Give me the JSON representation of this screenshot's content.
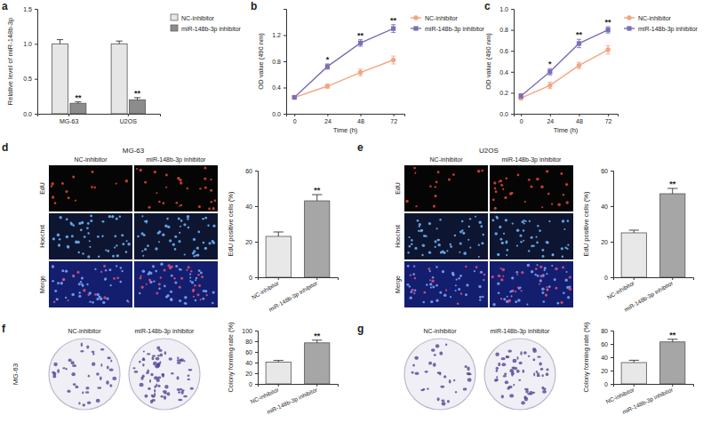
{
  "chart_data": [
    {
      "panel": "a",
      "type": "bar",
      "ylabel": "Relative level of miR-148b-3p",
      "categories": [
        "MG-63",
        "U2OS"
      ],
      "series": [
        {
          "name": "NC-inhibitor",
          "color": "#e6e6e6",
          "values": [
            1.0,
            1.0
          ],
          "errors": [
            0.06,
            0.04
          ]
        },
        {
          "name": "miR-148b-3p inhibitor",
          "color": "#8c8c8c",
          "values": [
            0.15,
            0.2
          ],
          "errors": [
            0.02,
            0.03
          ]
        }
      ],
      "ylim": [
        0,
        1.5
      ],
      "yticks": [
        {
          "value": 0,
          "label": "0.0"
        },
        0.5,
        {
          "value": 1,
          "label": "1.0"
        },
        1.5
      ],
      "legend": "right",
      "annotations": [
        {
          "x": "MG-63",
          "series": "miR-148b-3p inhibitor",
          "text": "**"
        },
        {
          "x": "U2OS",
          "series": "miR-148b-3p inhibitor",
          "text": "**"
        }
      ]
    },
    {
      "panel": "b",
      "type": "line",
      "xlabel": "Time (h)",
      "ylabel": "OD value (490 nm)",
      "x": [
        0,
        24,
        48,
        72
      ],
      "xlim": [
        -6,
        80
      ],
      "xticks": [
        0,
        24,
        48,
        72
      ],
      "ylim": [
        0,
        1.6
      ],
      "yticks": [
        {
          "value": 0,
          "label": "0.0"
        },
        0.4,
        0.8,
        1.2
      ],
      "series": [
        {
          "name": "NC-inhibitor",
          "color": "#f4a582",
          "marker": "circle",
          "values": [
            0.25,
            0.42,
            0.63,
            0.82
          ],
          "errors": [
            0.02,
            0.03,
            0.05,
            0.06
          ]
        },
        {
          "name": "miR-148b-3p inhibitor",
          "color": "#7b6fb5",
          "marker": "square",
          "values": [
            0.25,
            0.72,
            1.08,
            1.3
          ],
          "errors": [
            0.02,
            0.04,
            0.05,
            0.06
          ]
        }
      ],
      "legend": "right",
      "annotations": [
        {
          "x": 24,
          "text": "*"
        },
        {
          "x": 48,
          "text": "**"
        },
        {
          "x": 72,
          "text": "**"
        }
      ]
    },
    {
      "panel": "c",
      "type": "line",
      "xlabel": "Time (h)",
      "ylabel": "OD value (490 nm)",
      "x": [
        0,
        24,
        48,
        72
      ],
      "xlim": [
        -6,
        80
      ],
      "xticks": [
        0,
        24,
        48,
        72
      ],
      "ylim": [
        0,
        1.0
      ],
      "yticks": [
        {
          "value": 0,
          "label": "0.0"
        },
        0.2,
        0.4,
        0.6,
        0.8,
        {
          "value": 1,
          "label": "1.0"
        }
      ],
      "series": [
        {
          "name": "NC-inhibitor",
          "color": "#f4a582",
          "marker": "circle",
          "values": [
            0.15,
            0.27,
            0.46,
            0.61
          ],
          "errors": [
            0.02,
            0.03,
            0.03,
            0.04
          ]
        },
        {
          "name": "miR-148b-3p inhibitor",
          "color": "#7b6fb5",
          "marker": "square",
          "values": [
            0.17,
            0.4,
            0.67,
            0.8
          ],
          "errors": [
            0.02,
            0.03,
            0.04,
            0.03
          ]
        }
      ],
      "legend": "right",
      "annotations": [
        {
          "x": 24,
          "text": "*"
        },
        {
          "x": 48,
          "text": "**"
        },
        {
          "x": 72,
          "text": "**"
        }
      ]
    },
    {
      "type": "bar",
      "ylabel": "EdU positive cells (%)",
      "categories": [
        "NC-inhibitor",
        "miR-148b-3p inhibitor"
      ],
      "values": [
        23,
        43
      ],
      "errors": [
        2.5,
        3.5
      ],
      "colors": [
        "#e8e8e8",
        "#a6a6a6"
      ],
      "ylim": [
        0,
        60
      ],
      "yticks": [
        0,
        20,
        40,
        60
      ],
      "annotations": [
        {
          "x": "miR-148b-3p inhibitor",
          "text": "**"
        }
      ]
    },
    {
      "type": "bar",
      "ylabel": "EdU positive cells (%)",
      "categories": [
        "NC-inhibitor",
        "miR-148b-3p inhibitor"
      ],
      "values": [
        25,
        47
      ],
      "errors": [
        1.5,
        3
      ],
      "colors": [
        "#e8e8e8",
        "#a6a6a6"
      ],
      "ylim": [
        0,
        60
      ],
      "yticks": [
        0,
        20,
        40,
        60
      ],
      "annotations": [
        {
          "x": "miR-148b-3p inhibitor",
          "text": "**"
        }
      ]
    },
    {
      "type": "bar",
      "ylabel": "Colony forming rate (%)",
      "categories": [
        "NC-inhibitor",
        "miR-148b-3p inhibitor"
      ],
      "values": [
        41,
        77
      ],
      "errors": [
        3,
        5
      ],
      "colors": [
        "#e8e8e8",
        "#a6a6a6"
      ],
      "ylim": [
        0,
        100
      ],
      "yticks": [
        0,
        20,
        40,
        60,
        80,
        100
      ],
      "annotations": [
        {
          "x": "miR-148b-3p inhibitor",
          "text": "**"
        }
      ]
    },
    {
      "type": "bar",
      "ylabel": "Colony forming rate (%)",
      "categories": [
        "NC-inhibitor",
        "miR-148b-3p inhibitor"
      ],
      "values": [
        32,
        63
      ],
      "errors": [
        3.5,
        4
      ],
      "colors": [
        "#e8e8e8",
        "#a6a6a6"
      ],
      "ylim": [
        0,
        80
      ],
      "yticks": [
        0,
        20,
        40,
        60,
        80
      ],
      "annotations": [
        {
          "x": "miR-148b-3p inhibitor",
          "text": "**"
        }
      ]
    }
  ],
  "images": [
    {
      "panel": "d",
      "title": "MG-63",
      "columns": [
        "NC-inhibitor",
        "miR-148b-3p inhibitor"
      ],
      "rows": [
        "EdU",
        "Hoechst",
        "Merge"
      ]
    },
    {
      "panel": "e",
      "title": "U2OS",
      "columns": [
        "NC-inhibitor",
        "miR-148b-3p inhibitor"
      ],
      "rows": [
        "EdU",
        "Hoechst",
        "Merge"
      ]
    },
    {
      "panel": "f",
      "title": "MG-63",
      "columns": [
        "NC-inhibitor",
        "miR-148b-3p inhibitor"
      ]
    },
    {
      "panel": "g",
      "columns": [
        "NC-inhibitor",
        "miR-148b-3p inhibitor"
      ]
    }
  ]
}
